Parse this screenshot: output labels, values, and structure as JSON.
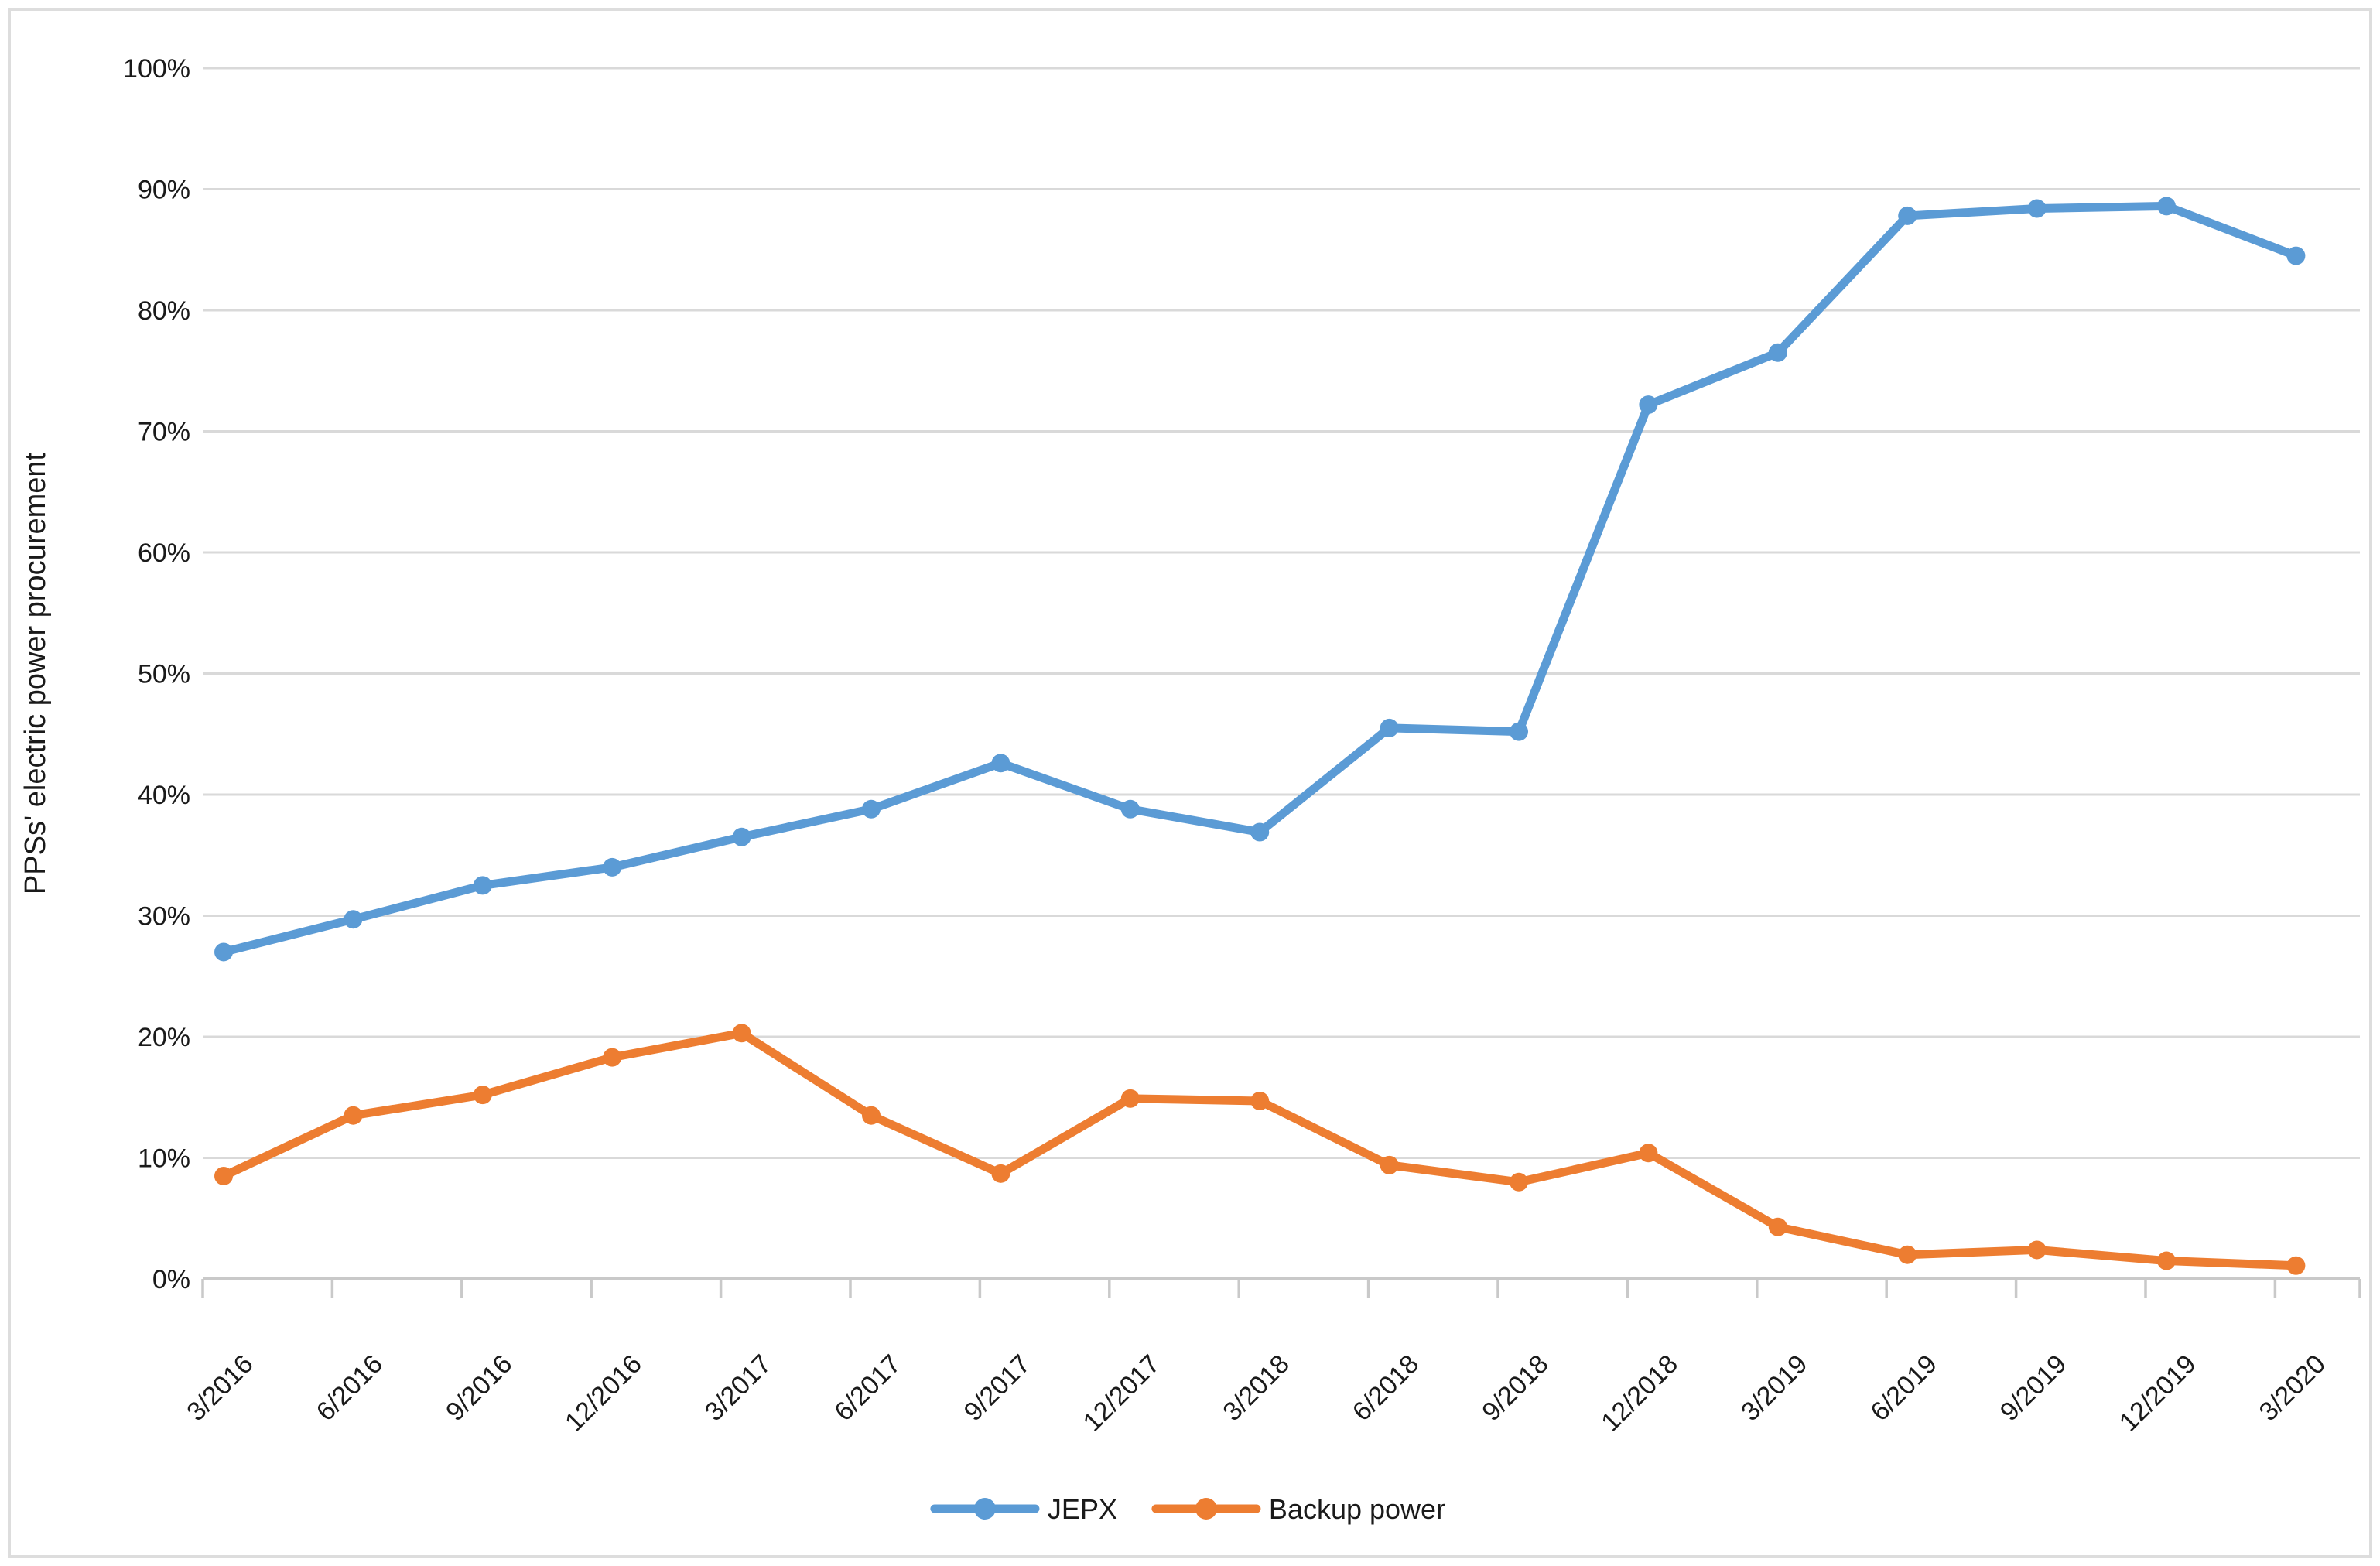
{
  "chart_data": {
    "type": "line",
    "title": "",
    "xlabel": "",
    "ylabel": "PPSs' electric power procurement",
    "ylim": [
      0,
      100
    ],
    "ytick_step": 10,
    "ytick_labels": [
      "0%",
      "10%",
      "20%",
      "30%",
      "40%",
      "50%",
      "60%",
      "70%",
      "80%",
      "90%",
      "100%"
    ],
    "grid": true,
    "legend_position": "bottom",
    "categories": [
      "3/2016",
      "6/2016",
      "9/2016",
      "12/2016",
      "3/2017",
      "6/2017",
      "9/2017",
      "12/2017",
      "3/2018",
      "6/2018",
      "9/2018",
      "12/2018",
      "3/2019",
      "6/2019",
      "9/2019",
      "12/2019",
      "3/2020"
    ],
    "series": [
      {
        "name": "JEPX",
        "color": "#5B9BD5",
        "values": [
          27.0,
          29.7,
          32.5,
          34.0,
          36.5,
          38.8,
          42.6,
          38.8,
          36.9,
          45.5,
          45.2,
          72.2,
          76.5,
          87.8,
          88.4,
          88.6,
          84.5
        ]
      },
      {
        "name": "Backup power",
        "color": "#ED7D31",
        "values": [
          8.5,
          13.5,
          15.2,
          18.3,
          20.3,
          13.5,
          8.7,
          14.9,
          14.7,
          9.4,
          8.0,
          10.4,
          4.3,
          2.0,
          2.4,
          1.5,
          1.1
        ]
      }
    ],
    "colors": {
      "gridline": "#D9D9D9",
      "axis_line": "#C9C9C9",
      "tick_mark": "#C9C9C9",
      "text": "#1a1a1a",
      "frame_border": "#DDDDDD",
      "background": "#FFFFFF"
    }
  }
}
